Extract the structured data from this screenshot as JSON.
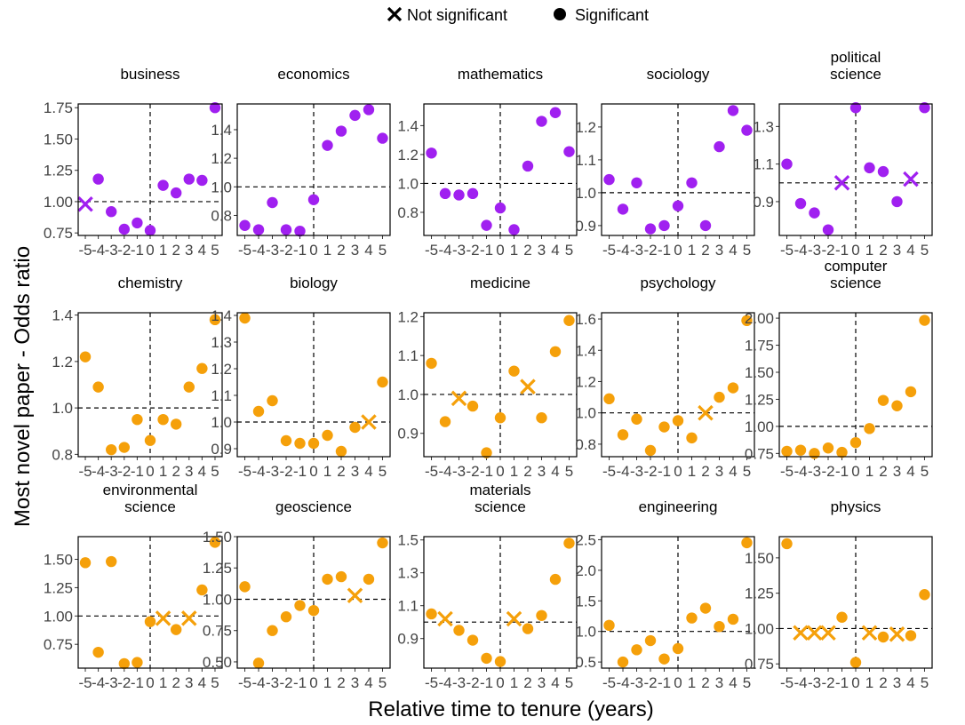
{
  "colors": {
    "social": "#a020f0",
    "natural": "#f5a00a"
  },
  "legend": {
    "items": [
      {
        "label": "Not significant",
        "marker": "cross"
      },
      {
        "label": "Significant",
        "marker": "dot"
      }
    ]
  },
  "xlabel": "Relative time to tenure (years)",
  "ylabel": "Most novel paper - Odds ratio",
  "chart_data": [
    {
      "type": "scatter",
      "title": "business",
      "color_group": "social",
      "ylim": [
        0.73,
        1.78
      ],
      "yticks": [
        "0.75",
        "1.00",
        "1.25",
        "1.50",
        "1.75"
      ],
      "x": [
        -5,
        -4,
        -3,
        -2,
        -1,
        0,
        1,
        2,
        3,
        4,
        5
      ],
      "values": [
        0.98,
        1.18,
        0.92,
        0.78,
        0.83,
        0.77,
        1.13,
        1.07,
        1.18,
        1.17,
        1.75
      ],
      "significant": [
        false,
        true,
        true,
        true,
        true,
        true,
        true,
        true,
        true,
        true,
        true
      ]
    },
    {
      "type": "scatter",
      "title": "economics",
      "color_group": "social",
      "ylim": [
        0.66,
        1.58
      ],
      "yticks": [
        "0.8",
        "1.0",
        "1.2",
        "1.4"
      ],
      "x": [
        -5,
        -4,
        -3,
        -2,
        -1,
        0,
        1,
        2,
        3,
        4,
        5
      ],
      "values": [
        0.73,
        0.7,
        0.89,
        0.7,
        0.69,
        0.91,
        1.29,
        1.39,
        1.5,
        1.54,
        1.34
      ],
      "significant": [
        true,
        true,
        true,
        true,
        true,
        true,
        true,
        true,
        true,
        true,
        true
      ]
    },
    {
      "type": "scatter",
      "title": "mathematics",
      "color_group": "social",
      "ylim": [
        0.64,
        1.55
      ],
      "yticks": [
        "0.8",
        "1.0",
        "1.2",
        "1.4"
      ],
      "x": [
        -5,
        -4,
        -3,
        -2,
        -1,
        0,
        1,
        2,
        3,
        4,
        5
      ],
      "values": [
        1.21,
        0.93,
        0.92,
        0.93,
        0.71,
        0.83,
        0.68,
        1.12,
        1.43,
        1.49,
        1.22
      ],
      "significant": [
        true,
        true,
        true,
        true,
        true,
        true,
        true,
        true,
        true,
        true,
        true
      ]
    },
    {
      "type": "scatter",
      "title": "sociology",
      "color_group": "social",
      "ylim": [
        0.87,
        1.27
      ],
      "yticks": [
        "0.9",
        "1.0",
        "1.1",
        "1.2"
      ],
      "x": [
        -5,
        -4,
        -3,
        -2,
        -1,
        0,
        1,
        2,
        3,
        4,
        5
      ],
      "values": [
        1.04,
        0.95,
        1.03,
        0.89,
        0.9,
        0.96,
        1.03,
        0.9,
        1.14,
        1.25,
        1.19
      ],
      "significant": [
        true,
        true,
        true,
        true,
        true,
        true,
        true,
        true,
        true,
        true,
        true
      ]
    },
    {
      "type": "scatter",
      "title": "political\nscience",
      "color_group": "social",
      "ylim": [
        0.72,
        1.42
      ],
      "yticks": [
        "0.9",
        "1.1",
        "1.3"
      ],
      "x": [
        -5,
        -4,
        -3,
        -2,
        -1,
        0,
        1,
        2,
        3,
        4,
        5
      ],
      "values": [
        1.1,
        0.89,
        0.84,
        0.75,
        1.0,
        1.4,
        1.08,
        1.06,
        0.9,
        1.02,
        1.4
      ],
      "significant": [
        true,
        true,
        true,
        true,
        false,
        true,
        true,
        true,
        true,
        false,
        true
      ]
    },
    {
      "type": "scatter",
      "title": "chemistry",
      "color_group": "natural",
      "ylim": [
        0.79,
        1.41
      ],
      "yticks": [
        "0.8",
        "1.0",
        "1.2",
        "1.4"
      ],
      "x": [
        -5,
        -4,
        -3,
        -2,
        -1,
        0,
        1,
        2,
        3,
        4,
        5
      ],
      "values": [
        1.22,
        1.09,
        0.82,
        0.83,
        0.95,
        0.86,
        0.95,
        0.93,
        1.09,
        1.17,
        1.38
      ],
      "significant": [
        true,
        true,
        true,
        true,
        true,
        true,
        true,
        true,
        true,
        true,
        true
      ]
    },
    {
      "type": "scatter",
      "title": "biology",
      "color_group": "natural",
      "ylim": [
        0.87,
        1.41
      ],
      "yticks": [
        "0.9",
        "1.0",
        "1.1",
        "1.2",
        "1.3",
        "1.4"
      ],
      "x": [
        -5,
        -4,
        -3,
        -2,
        -1,
        0,
        1,
        2,
        3,
        4,
        5
      ],
      "values": [
        1.39,
        1.04,
        1.08,
        0.93,
        0.92,
        0.92,
        0.95,
        0.89,
        0.98,
        1.0,
        1.15
      ],
      "significant": [
        true,
        true,
        true,
        true,
        true,
        true,
        true,
        true,
        true,
        false,
        true
      ]
    },
    {
      "type": "scatter",
      "title": "medicine",
      "color_group": "natural",
      "ylim": [
        0.84,
        1.21
      ],
      "yticks": [
        "0.9",
        "1.0",
        "1.1",
        "1.2"
      ],
      "x": [
        -5,
        -4,
        -3,
        -2,
        -1,
        0,
        1,
        2,
        3,
        4,
        5
      ],
      "values": [
        1.08,
        0.93,
        0.99,
        0.97,
        0.85,
        0.94,
        1.06,
        1.02,
        0.94,
        1.11,
        1.19
      ],
      "significant": [
        true,
        true,
        false,
        true,
        true,
        true,
        true,
        false,
        true,
        true,
        true
      ]
    },
    {
      "type": "scatter",
      "title": "psychology",
      "color_group": "natural",
      "ylim": [
        0.72,
        1.64
      ],
      "yticks": [
        "0.8",
        "1.0",
        "1.2",
        "1.4",
        "1.6"
      ],
      "x": [
        -5,
        -4,
        -3,
        -2,
        -1,
        0,
        1,
        2,
        3,
        4,
        5
      ],
      "values": [
        1.09,
        0.86,
        0.96,
        0.76,
        0.91,
        0.95,
        0.84,
        1.0,
        1.1,
        1.16,
        1.59
      ],
      "significant": [
        true,
        true,
        true,
        true,
        true,
        true,
        true,
        false,
        true,
        true,
        true
      ]
    },
    {
      "type": "scatter",
      "title": "computer\nscience",
      "color_group": "natural",
      "ylim": [
        0.72,
        2.05
      ],
      "yticks": [
        "0.75",
        "1.00",
        "1.25",
        "1.50",
        "1.75",
        "2.00"
      ],
      "x": [
        -5,
        -4,
        -3,
        -2,
        -1,
        0,
        1,
        2,
        3,
        4,
        5
      ],
      "values": [
        0.77,
        0.78,
        0.75,
        0.8,
        0.76,
        0.85,
        0.98,
        1.24,
        1.19,
        1.32,
        1.98
      ],
      "significant": [
        true,
        true,
        true,
        true,
        true,
        true,
        true,
        true,
        true,
        true,
        true
      ]
    },
    {
      "type": "scatter",
      "title": "environmental\nscience",
      "color_group": "natural",
      "ylim": [
        0.54,
        1.7
      ],
      "yticks": [
        "0.75",
        "1.00",
        "1.25",
        "1.50"
      ],
      "x": [
        -5,
        -4,
        -3,
        -2,
        -1,
        0,
        1,
        2,
        3,
        4,
        5
      ],
      "values": [
        1.47,
        0.68,
        1.48,
        0.58,
        0.59,
        0.95,
        0.98,
        0.88,
        0.98,
        1.23,
        1.65
      ],
      "significant": [
        true,
        true,
        true,
        true,
        true,
        true,
        false,
        true,
        false,
        true,
        true
      ]
    },
    {
      "type": "scatter",
      "title": "geoscience",
      "color_group": "natural",
      "ylim": [
        0.45,
        1.5
      ],
      "yticks": [
        "0.50",
        "0.75",
        "1.00",
        "1.25",
        "1.50"
      ],
      "x": [
        -5,
        -4,
        -3,
        -2,
        -1,
        0,
        1,
        2,
        3,
        4,
        5
      ],
      "values": [
        1.1,
        0.49,
        0.75,
        0.86,
        0.95,
        0.91,
        1.16,
        1.18,
        1.03,
        1.16,
        1.45
      ],
      "significant": [
        true,
        true,
        true,
        true,
        true,
        true,
        true,
        true,
        false,
        true,
        true
      ]
    },
    {
      "type": "scatter",
      "title": "materials\nscience",
      "color_group": "natural",
      "ylim": [
        0.72,
        1.52
      ],
      "yticks": [
        "0.9",
        "1.1",
        "1.3",
        "1.5"
      ],
      "x": [
        -5,
        -4,
        -3,
        -2,
        -1,
        0,
        1,
        2,
        3,
        4,
        5
      ],
      "values": [
        1.05,
        1.02,
        0.95,
        0.89,
        0.78,
        0.76,
        1.02,
        0.96,
        1.04,
        1.26,
        1.48
      ],
      "significant": [
        true,
        false,
        true,
        true,
        true,
        true,
        false,
        true,
        true,
        true,
        true
      ]
    },
    {
      "type": "scatter",
      "title": "engineering",
      "color_group": "natural",
      "ylim": [
        0.4,
        2.55
      ],
      "yticks": [
        "0.5",
        "1.0",
        "1.5",
        "2.0",
        "2.5"
      ],
      "x": [
        -5,
        -4,
        -3,
        -2,
        -1,
        0,
        1,
        2,
        3,
        4,
        5
      ],
      "values": [
        1.1,
        0.5,
        0.7,
        0.85,
        0.55,
        0.72,
        1.22,
        1.38,
        1.08,
        1.2,
        2.45
      ],
      "significant": [
        true,
        true,
        true,
        true,
        true,
        true,
        true,
        true,
        true,
        true,
        true
      ]
    },
    {
      "type": "scatter",
      "title": "physics",
      "color_group": "natural",
      "ylim": [
        0.72,
        1.65
      ],
      "yticks": [
        "0.75",
        "1.00",
        "1.25",
        "1.50"
      ],
      "x": [
        -5,
        -4,
        -3,
        -2,
        -1,
        0,
        1,
        2,
        3,
        4,
        5
      ],
      "values": [
        1.6,
        0.97,
        0.97,
        0.97,
        1.08,
        0.76,
        0.97,
        0.94,
        0.96,
        0.95,
        1.24
      ],
      "significant": [
        true,
        false,
        false,
        false,
        true,
        true,
        false,
        true,
        false,
        true,
        true
      ]
    }
  ]
}
